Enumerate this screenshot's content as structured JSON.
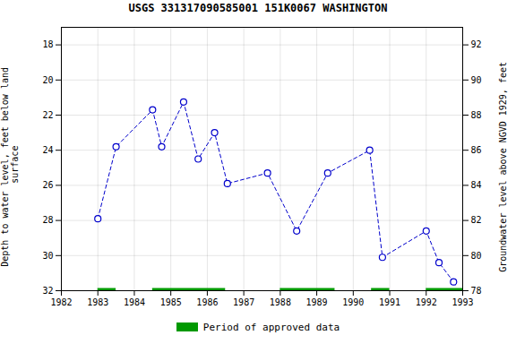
{
  "chart_data": {
    "type": "line",
    "title": "USGS 331317090585001 151K0067  WASHINGTON",
    "ylabel": "Depth to water level, feet below land\n surface",
    "y2label": "Groundwater level above NGVD 1929, feet",
    "xlim": [
      1982,
      1993
    ],
    "ylim": [
      32,
      17
    ],
    "y2lim": [
      78,
      93
    ],
    "xticks": [
      1982,
      1983,
      1984,
      1985,
      1986,
      1987,
      1988,
      1989,
      1990,
      1991,
      1992,
      1993
    ],
    "yticks": [
      18,
      20,
      22,
      24,
      26,
      28,
      30,
      32
    ],
    "y2ticks": [
      78,
      80,
      82,
      84,
      86,
      88,
      90,
      92
    ],
    "grid": true,
    "legend": "bottom",
    "x": [
      1983.0,
      1983.5,
      1984.5,
      1984.75,
      1985.35,
      1985.75,
      1986.2,
      1986.55,
      1987.65,
      1988.45,
      1989.3,
      1990.45,
      1990.8,
      1992.0,
      1992.35,
      1992.75
    ],
    "series": [
      {
        "type": "line",
        "color": "#0000cc",
        "marker": "circle",
        "line_style": "dashed",
        "values": [
          27.9,
          23.8,
          21.7,
          23.8,
          21.25,
          24.5,
          23.0,
          25.9,
          25.3,
          28.6,
          25.3,
          24.0,
          30.1,
          28.6,
          30.4,
          31.5
        ]
      },
      {
        "name": "Period of approved data",
        "type": "bar",
        "orientation": "horizontal",
        "color": "#009900",
        "y": 32,
        "ranges": [
          [
            1983.0,
            1983.5
          ],
          [
            1984.5,
            1986.5
          ],
          [
            1988.0,
            1989.5
          ],
          [
            1990.5,
            1991.0
          ],
          [
            1992.0,
            1993.0
          ]
        ]
      }
    ]
  }
}
